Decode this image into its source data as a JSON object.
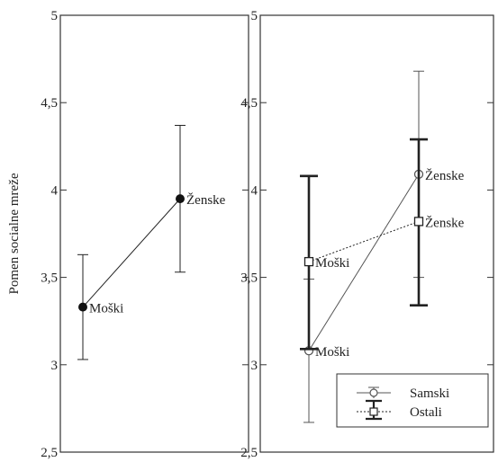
{
  "chart_data": [
    {
      "type": "line",
      "ylabel": "Pomen socialne mreže",
      "ylim": [
        2.5,
        5
      ],
      "yticks": [
        "2,5",
        "3",
        "3,5",
        "4",
        "4,5",
        "5"
      ],
      "grid": false,
      "series": [
        {
          "points": [
            {
              "label": "Moški",
              "value": 3.33,
              "err_low": 3.03,
              "err_high": 3.63
            },
            {
              "label": "Ženske",
              "value": 3.95,
              "err_low": 3.53,
              "err_high": 4.37
            }
          ],
          "marker": "filled-circle",
          "color": "#222222"
        }
      ]
    },
    {
      "type": "line",
      "ylim": [
        2.5,
        5
      ],
      "yticks": [
        "2,5",
        "3",
        "3,5",
        "4",
        "4,5",
        "5"
      ],
      "grid": false,
      "legend_position": "bottom-right",
      "series": [
        {
          "name": "Samski",
          "marker": "open-circle",
          "line": "solid",
          "color": "#555555",
          "points": [
            {
              "label": "Moški",
              "value": 3.08,
              "err_low": 2.67,
              "err_high": 3.49
            },
            {
              "label": "Ženske",
              "value": 4.09,
              "err_low": 3.5,
              "err_high": 4.68
            }
          ]
        },
        {
          "name": "Ostali",
          "marker": "open-square",
          "line": "dotted",
          "color": "#222222",
          "points": [
            {
              "label": "Moški",
              "value": 3.59,
              "err_low": 3.09,
              "err_high": 4.08
            },
            {
              "label": "Ženske",
              "value": 3.82,
              "err_low": 3.34,
              "err_high": 4.29
            }
          ]
        }
      ]
    }
  ]
}
